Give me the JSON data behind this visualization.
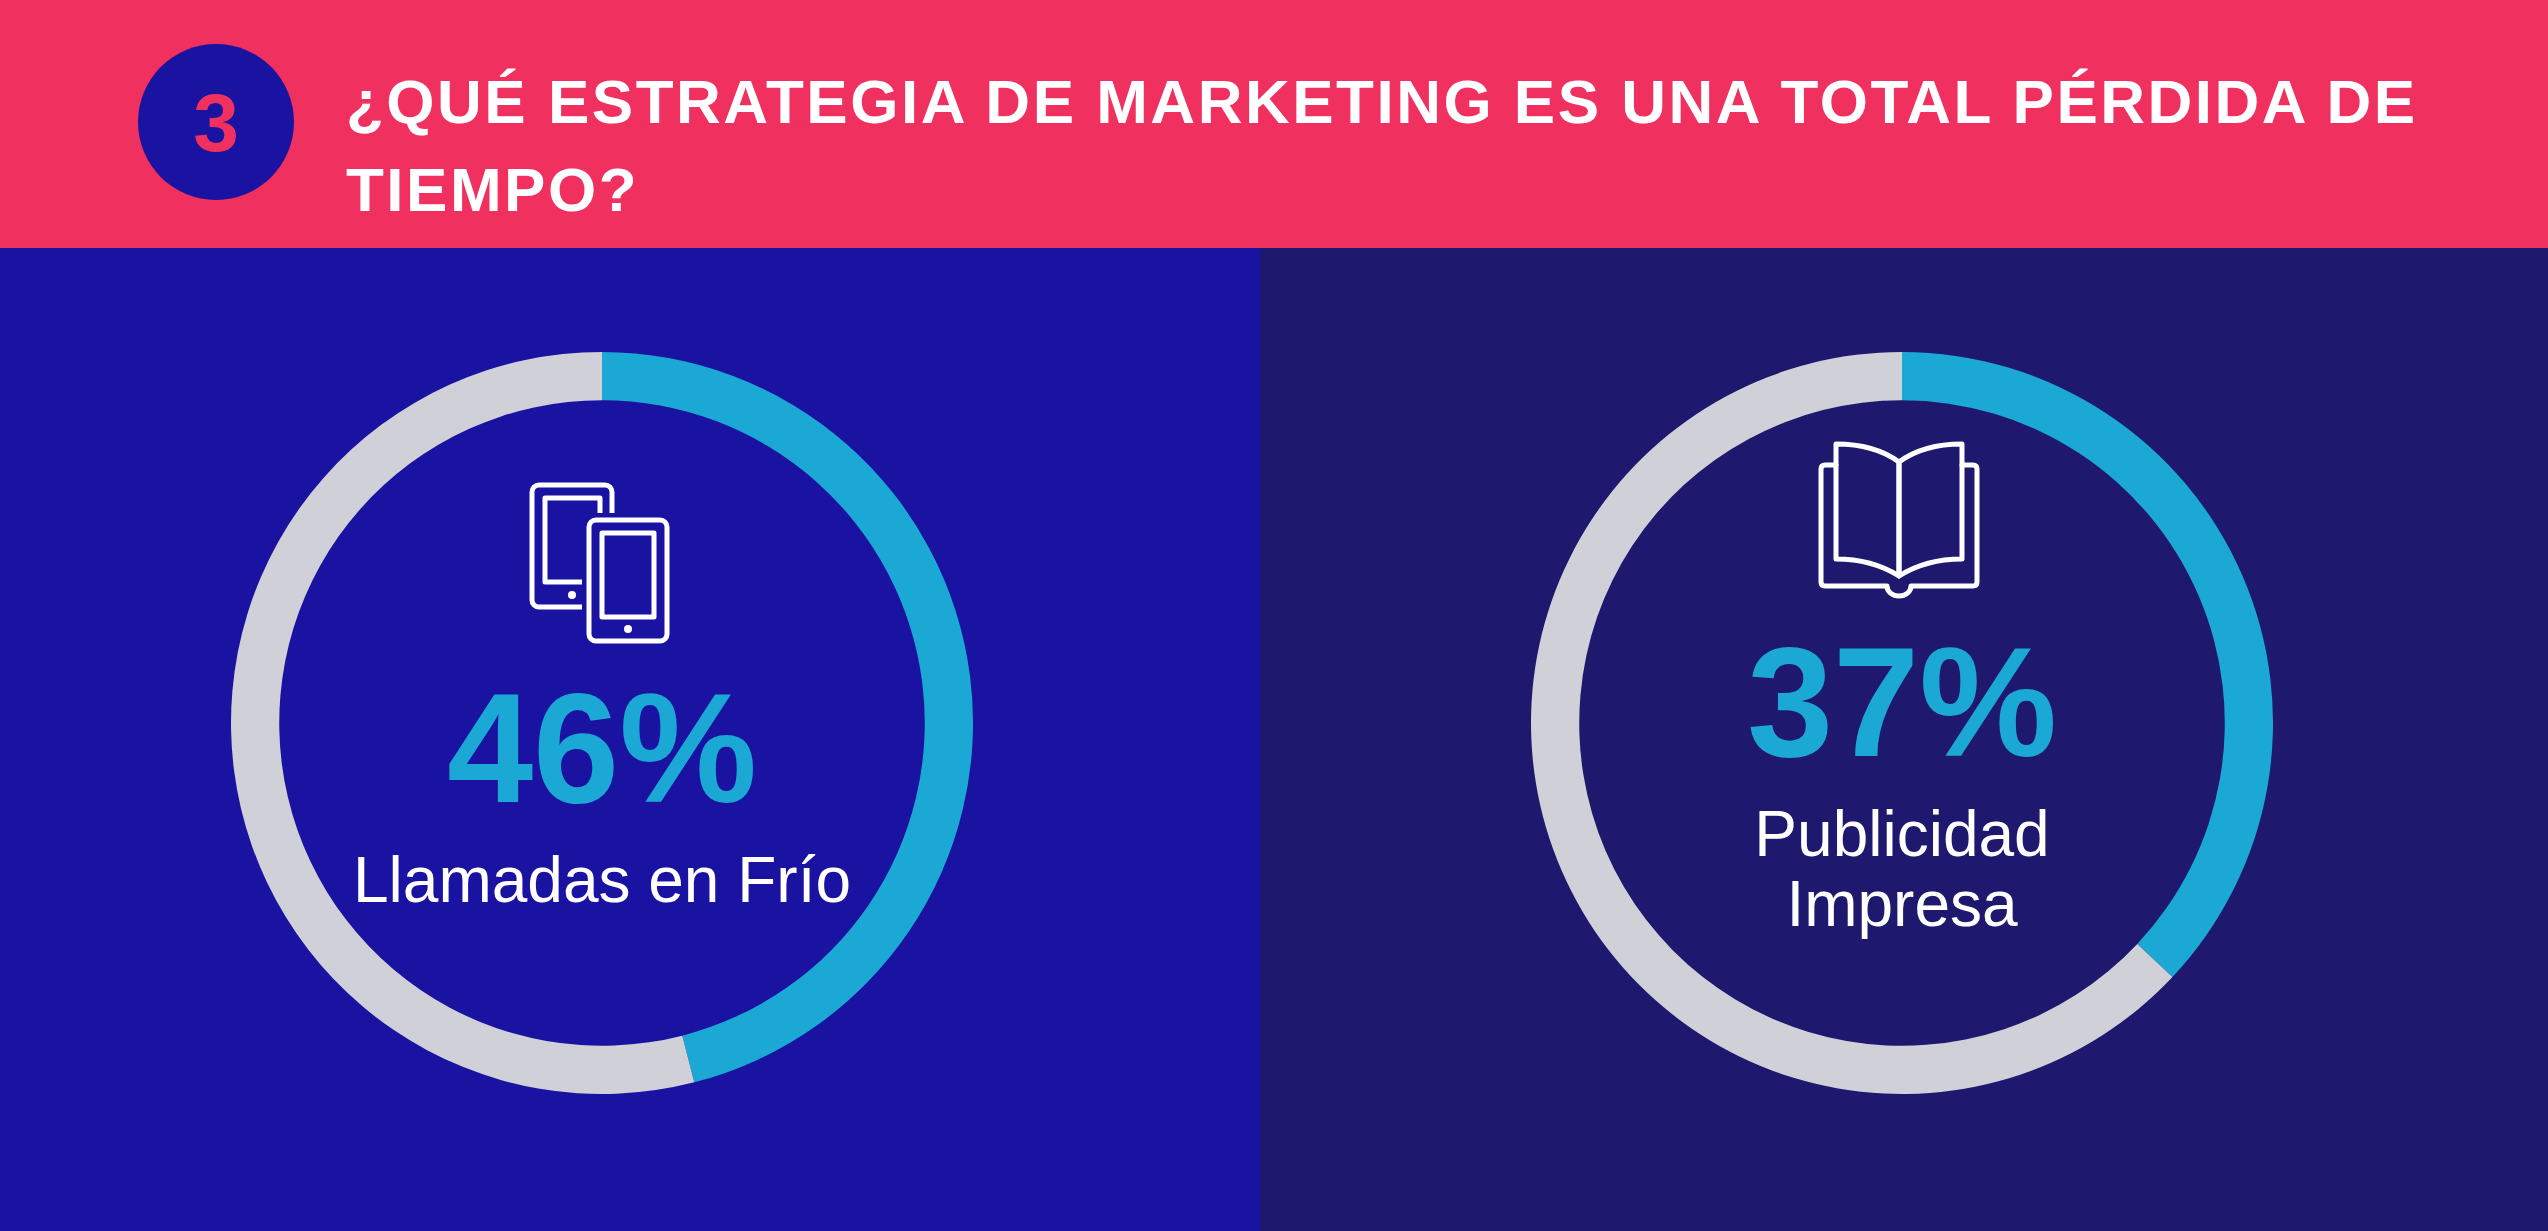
{
  "chart_data": [
    {
      "type": "other",
      "title": "¿QUÉ ESTRATEGIA DE MARKETING ES UNA TOTAL PÉRDIDA DE TIEMPO?",
      "annotations": [
        "3"
      ]
    },
    {
      "type": "donut",
      "categories": [
        "Llamadas en Frío",
        null
      ],
      "values": [
        46,
        54
      ],
      "colors": [
        "#1ba8d5",
        "#cfd0d8"
      ],
      "value_labels": [
        "46%",
        null
      ]
    },
    {
      "type": "donut",
      "categories": [
        "Publicidad Impresa",
        null
      ],
      "values": [
        37,
        63
      ],
      "colors": [
        "#1ba8d5",
        "#cfd0d8"
      ],
      "value_labels": [
        "37%",
        null
      ]
    }
  ]
}
